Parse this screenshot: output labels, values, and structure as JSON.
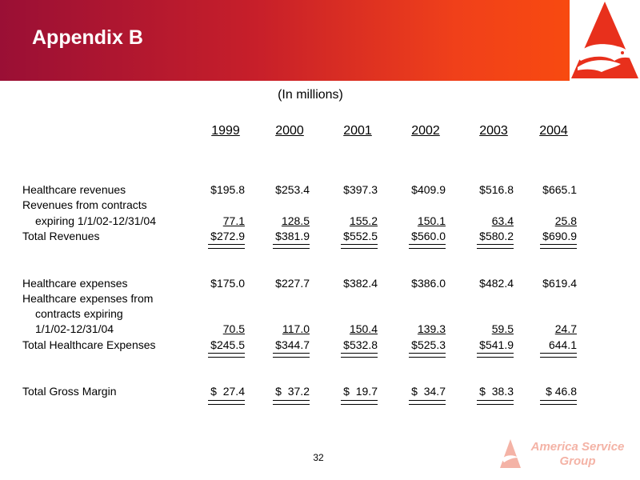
{
  "header": {
    "title": "Appendix B"
  },
  "subtitle": "(In millions)",
  "years": [
    "1999",
    "2000",
    "2001",
    "2002",
    "2003",
    "2004"
  ],
  "rows": {
    "hc_rev": {
      "label": "Healthcare revenues",
      "values": [
        "$195.8",
        "$253.4",
        "$397.3",
        "$409.9",
        "$516.8",
        "$665.1"
      ]
    },
    "rev_contracts": {
      "label1": "Revenues from contracts",
      "label2": "expiring 1/1/02-12/31/04",
      "values": [
        "77.1",
        "128.5",
        "155.2",
        "150.1",
        "63.4",
        "25.8"
      ]
    },
    "total_rev": {
      "label": "Total Revenues",
      "values": [
        "$272.9",
        "$381.9",
        "$552.5",
        "$560.0",
        "$580.2",
        "$690.9"
      ]
    },
    "hc_exp": {
      "label": "Healthcare expenses",
      "values": [
        "$175.0",
        "$227.7",
        "$382.4",
        "$386.0",
        "$482.4",
        "$619.4"
      ]
    },
    "exp_contracts": {
      "label1": "Healthcare expenses from",
      "label2": "contracts expiring",
      "label3": "1/1/02-12/31/04",
      "values": [
        "70.5",
        "117.0",
        "150.4",
        "139.3",
        "59.5",
        "24.7"
      ]
    },
    "total_exp": {
      "label": "Total Healthcare Expenses",
      "values": [
        "$245.5",
        "$344.7",
        "$532.8",
        "$525.3",
        "$541.9",
        "644.1"
      ]
    },
    "margin": {
      "label": "Total Gross Margin",
      "values": [
        "$  27.4",
        "$  37.2",
        "$  19.7",
        "$  34.7",
        "$  38.3",
        "$ 46.8"
      ]
    }
  },
  "footer": {
    "page": "32",
    "brand_line1": "America Service",
    "brand_line2": "Group"
  },
  "colors": {
    "header_start": "#9a0f35",
    "header_end": "#f84a10",
    "logo_red": "#e8301c",
    "brand_faded": "#f4b3a6"
  }
}
